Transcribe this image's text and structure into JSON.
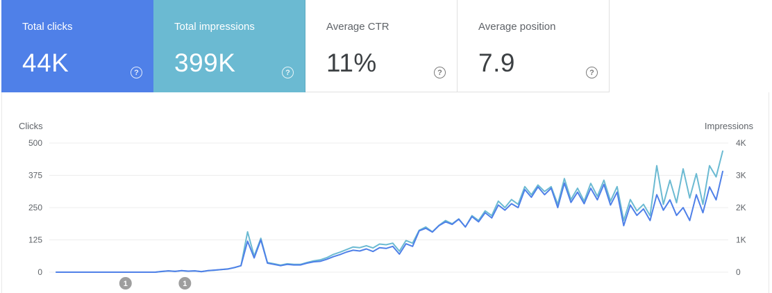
{
  "metrics": {
    "total_clicks": {
      "label": "Total clicks",
      "value": "44K"
    },
    "total_impressions": {
      "label": "Total impressions",
      "value": "399K"
    },
    "average_ctr": {
      "label": "Average CTR",
      "value": "11%"
    },
    "average_position": {
      "label": "Average position",
      "value": "7.9"
    },
    "help_glyph": "?"
  },
  "colors": {
    "clicks": "#4f80e8",
    "impressions": "#6bbad2",
    "grid": "#ececec",
    "annotation": "#9e9e9e"
  },
  "annotations": [
    {
      "x": 42,
      "label": "1"
    },
    {
      "x": 78,
      "label": "1"
    }
  ],
  "chart_data": {
    "type": "line",
    "y_left_label": "Clicks",
    "y_right_label": "Impressions",
    "y_left_ticks": [
      "500",
      "375",
      "250",
      "125",
      "0"
    ],
    "y_right_ticks": [
      "4K",
      "3K",
      "2K",
      "1K",
      "0"
    ],
    "y_left_lim": [
      0,
      500
    ],
    "y_right_lim": [
      0,
      4000
    ],
    "grid": true,
    "x": [
      0,
      4,
      8,
      12,
      16,
      20,
      24,
      28,
      32,
      36,
      40,
      44,
      48,
      52,
      56,
      60,
      64,
      68,
      72,
      76,
      80,
      84,
      88,
      92,
      96,
      100,
      104,
      108,
      112,
      116,
      120,
      124,
      128,
      132,
      136,
      140,
      144,
      148,
      152,
      156,
      160,
      164,
      168,
      172,
      176,
      180,
      184,
      188,
      192,
      196,
      200,
      204,
      208,
      212,
      216,
      220,
      224,
      228,
      232,
      236,
      240,
      244,
      248,
      252,
      256,
      260,
      264,
      268,
      272,
      276,
      280,
      284,
      288,
      292,
      296,
      300,
      304,
      308,
      312,
      316,
      320,
      324,
      328,
      332,
      336,
      340,
      344,
      348,
      352,
      356,
      360,
      364,
      368,
      372,
      376,
      380,
      384,
      388,
      392,
      396,
      400,
      404
    ],
    "series": [
      {
        "name": "Clicks",
        "axis": "left",
        "values": [
          0,
          0,
          0,
          0,
          0,
          0,
          0,
          0,
          0,
          0,
          0,
          0,
          0,
          0,
          0,
          0,
          3,
          5,
          3,
          6,
          4,
          5,
          2,
          6,
          8,
          10,
          12,
          18,
          25,
          120,
          55,
          125,
          35,
          30,
          25,
          30,
          28,
          28,
          35,
          40,
          42,
          50,
          60,
          68,
          78,
          85,
          82,
          90,
          80,
          95,
          92,
          100,
          70,
          110,
          100,
          160,
          170,
          155,
          180,
          195,
          185,
          205,
          175,
          215,
          195,
          230,
          210,
          260,
          240,
          265,
          250,
          320,
          290,
          330,
          300,
          325,
          250,
          345,
          270,
          310,
          265,
          325,
          280,
          340,
          260,
          310,
          180,
          260,
          220,
          245,
          200,
          300,
          240,
          280,
          220,
          250,
          200,
          300,
          230,
          330,
          280,
          390
        ]
      },
      {
        "name": "Impressions",
        "axis": "right",
        "values": [
          0,
          0,
          0,
          0,
          0,
          0,
          0,
          0,
          0,
          0,
          0,
          0,
          0,
          0,
          0,
          0,
          20,
          40,
          25,
          45,
          30,
          40,
          20,
          45,
          60,
          80,
          100,
          140,
          200,
          1250,
          500,
          1050,
          300,
          260,
          220,
          260,
          240,
          240,
          300,
          350,
          380,
          450,
          550,
          620,
          700,
          780,
          760,
          820,
          750,
          870,
          850,
          900,
          650,
          980,
          900,
          1300,
          1400,
          1250,
          1450,
          1600,
          1500,
          1650,
          1400,
          1750,
          1600,
          1900,
          1750,
          2200,
          2000,
          2250,
          2100,
          2650,
          2400,
          2700,
          2500,
          2650,
          2100,
          2900,
          2250,
          2600,
          2200,
          2750,
          2350,
          2850,
          2200,
          2650,
          1600,
          2250,
          1900,
          2100,
          1750,
          3300,
          2100,
          2850,
          2150,
          3200,
          2300,
          3050,
          2100,
          3300,
          2950,
          3750
        ]
      }
    ]
  }
}
